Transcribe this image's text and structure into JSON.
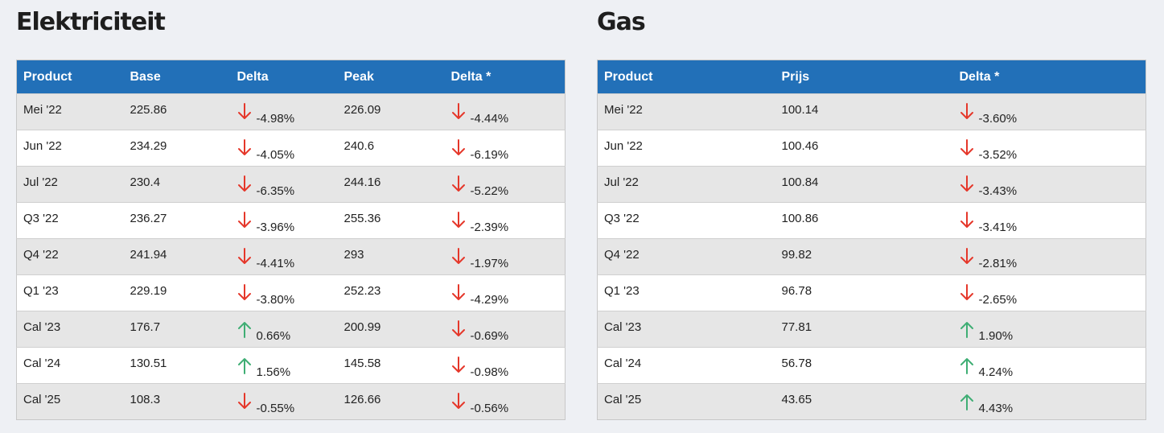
{
  "colors": {
    "header": "#2270b8",
    "down": "#e5372a",
    "up": "#3fae74"
  },
  "electricity": {
    "title": "Elektriciteit",
    "headers": [
      "Product",
      "Base",
      "Delta",
      "Peak",
      "Delta *"
    ],
    "rows": [
      {
        "product": "Mei '22",
        "base": "225.86",
        "base_delta": "-4.98%",
        "base_dir": "down",
        "peak": "226.09",
        "peak_delta": "-4.44%",
        "peak_dir": "down"
      },
      {
        "product": "Jun '22",
        "base": "234.29",
        "base_delta": "-4.05%",
        "base_dir": "down",
        "peak": "240.6",
        "peak_delta": "-6.19%",
        "peak_dir": "down"
      },
      {
        "product": "Jul '22",
        "base": "230.4",
        "base_delta": "-6.35%",
        "base_dir": "down",
        "peak": "244.16",
        "peak_delta": "-5.22%",
        "peak_dir": "down"
      },
      {
        "product": "Q3 '22",
        "base": "236.27",
        "base_delta": "-3.96%",
        "base_dir": "down",
        "peak": "255.36",
        "peak_delta": "-2.39%",
        "peak_dir": "down"
      },
      {
        "product": "Q4 '22",
        "base": "241.94",
        "base_delta": "-4.41%",
        "base_dir": "down",
        "peak": "293",
        "peak_delta": "-1.97%",
        "peak_dir": "down"
      },
      {
        "product": "Q1 '23",
        "base": "229.19",
        "base_delta": "-3.80%",
        "base_dir": "down",
        "peak": "252.23",
        "peak_delta": "-4.29%",
        "peak_dir": "down"
      },
      {
        "product": "Cal '23",
        "base": "176.7",
        "base_delta": "0.66%",
        "base_dir": "up",
        "peak": "200.99",
        "peak_delta": "-0.69%",
        "peak_dir": "down"
      },
      {
        "product": "Cal '24",
        "base": "130.51",
        "base_delta": "1.56%",
        "base_dir": "up",
        "peak": "145.58",
        "peak_delta": "-0.98%",
        "peak_dir": "down"
      },
      {
        "product": "Cal '25",
        "base": "108.3",
        "base_delta": "-0.55%",
        "base_dir": "down",
        "peak": "126.66",
        "peak_delta": "-0.56%",
        "peak_dir": "down"
      }
    ]
  },
  "gas": {
    "title": "Gas",
    "headers": [
      "Product",
      "Prijs",
      "Delta *"
    ],
    "rows": [
      {
        "product": "Mei '22",
        "price": "100.14",
        "delta": "-3.60%",
        "dir": "down"
      },
      {
        "product": "Jun '22",
        "price": "100.46",
        "delta": "-3.52%",
        "dir": "down"
      },
      {
        "product": "Jul '22",
        "price": "100.84",
        "delta": "-3.43%",
        "dir": "down"
      },
      {
        "product": "Q3 '22",
        "price": "100.86",
        "delta": "-3.41%",
        "dir": "down"
      },
      {
        "product": "Q4 '22",
        "price": "99.82",
        "delta": "-2.81%",
        "dir": "down"
      },
      {
        "product": "Q1 '23",
        "price": "96.78",
        "delta": "-2.65%",
        "dir": "down"
      },
      {
        "product": "Cal '23",
        "price": "77.81",
        "delta": "1.90%",
        "dir": "up"
      },
      {
        "product": "Cal '24",
        "price": "56.78",
        "delta": "4.24%",
        "dir": "up"
      },
      {
        "product": "Cal '25",
        "price": "43.65",
        "delta": "4.43%",
        "dir": "up"
      }
    ]
  }
}
